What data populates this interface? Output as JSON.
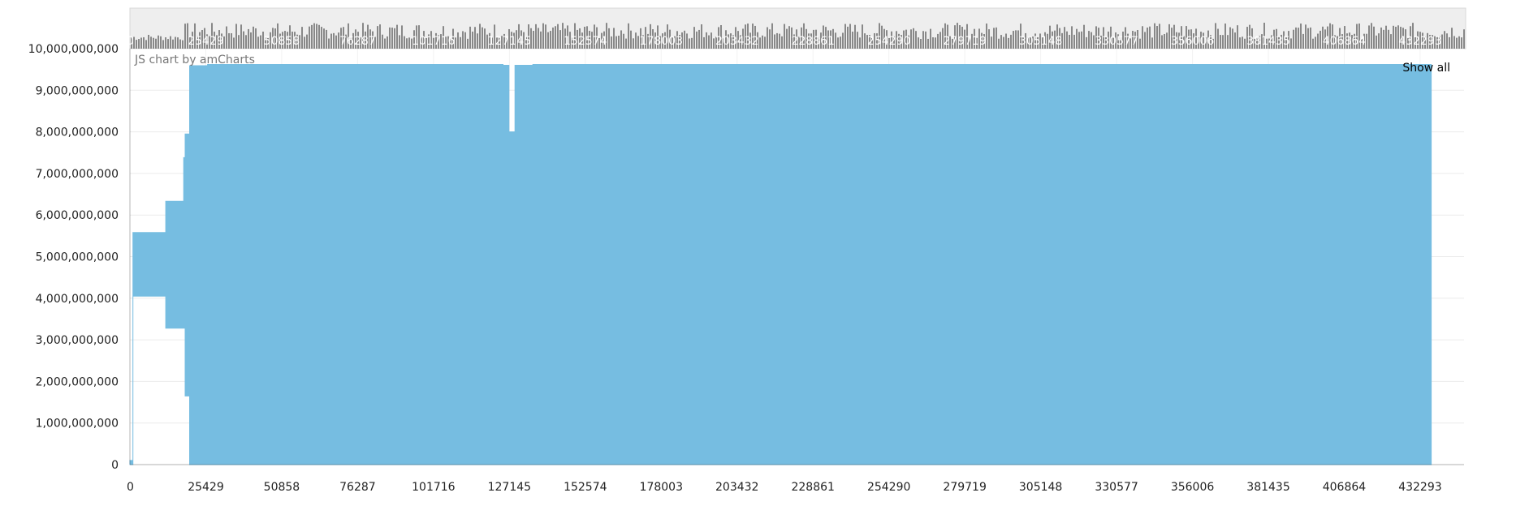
{
  "chart_data": {
    "type": "area",
    "title": "",
    "xlabel": "",
    "ylabel": "",
    "xlim": [
      0,
      447000
    ],
    "ylim": [
      0,
      10000000000
    ],
    "grid": true,
    "legend": "none",
    "y_ticks": [
      {
        "value": 0,
        "label": "0"
      },
      {
        "value": 1000000000,
        "label": "1,000,000,000"
      },
      {
        "value": 2000000000,
        "label": "2,000,000,000"
      },
      {
        "value": 3000000000,
        "label": "3,000,000,000"
      },
      {
        "value": 4000000000,
        "label": "4,000,000,000"
      },
      {
        "value": 5000000000,
        "label": "5,000,000,000"
      },
      {
        "value": 6000000000,
        "label": "6,000,000,000"
      },
      {
        "value": 7000000000,
        "label": "7,000,000,000"
      },
      {
        "value": 8000000000,
        "label": "8,000,000,000"
      },
      {
        "value": 9000000000,
        "label": "9,000,000,000"
      },
      {
        "value": 10000000000,
        "label": "10,000,000,000"
      }
    ],
    "x_ticks": [
      {
        "value": 0,
        "label": "0"
      },
      {
        "value": 25429,
        "label": "25429"
      },
      {
        "value": 50858,
        "label": "50858"
      },
      {
        "value": 76287,
        "label": "76287"
      },
      {
        "value": 101716,
        "label": "101716"
      },
      {
        "value": 127145,
        "label": "127145"
      },
      {
        "value": 152574,
        "label": "152574"
      },
      {
        "value": 178003,
        "label": "178003"
      },
      {
        "value": 203432,
        "label": "203432"
      },
      {
        "value": 228861,
        "label": "228861"
      },
      {
        "value": 254290,
        "label": "254290"
      },
      {
        "value": 279719,
        "label": "279719"
      },
      {
        "value": 305148,
        "label": "305148"
      },
      {
        "value": 330577,
        "label": "330577"
      },
      {
        "value": 356006,
        "label": "356006"
      },
      {
        "value": 381435,
        "label": "381435"
      },
      {
        "value": 406864,
        "label": "406864"
      },
      {
        "value": 432293,
        "label": "432293"
      }
    ],
    "series": [
      {
        "color": "#76bde1",
        "x": [
          0,
          1000,
          5000,
          12000,
          18000,
          18500,
          20000,
          23000,
          26000,
          100000,
          125000,
          127000,
          129000,
          135000,
          200000,
          250000,
          300000,
          350000,
          400000,
          436000
        ],
        "high": [
          100000000,
          5580000000,
          5580000000,
          6330000000,
          7380000000,
          7950000000,
          9590000000,
          9590000000,
          9620000000,
          9620000000,
          9600000000,
          8000000000,
          9600000000,
          9620000000,
          9620000000,
          9620000000,
          9620000000,
          9620000000,
          9620000000,
          9620000000
        ],
        "low": [
          0,
          4050000000,
          4050000000,
          3280000000,
          3280000000,
          1650000000,
          0,
          0,
          0,
          0,
          0,
          0,
          0,
          0,
          0,
          0,
          0,
          0,
          0,
          0
        ]
      }
    ]
  },
  "scrollbar": {
    "bar_color": "#888888",
    "background_color": "#eeeeee",
    "labels": [
      "0",
      "25429",
      "50858",
      "76287",
      "101716",
      "127145",
      "152574",
      "178003",
      "203432",
      "228861",
      "254290",
      "279719",
      "305148",
      "330577",
      "356006",
      "381435",
      "406864",
      "432293"
    ]
  },
  "credit_text": "JS chart by amCharts",
  "show_all_label": "Show all"
}
